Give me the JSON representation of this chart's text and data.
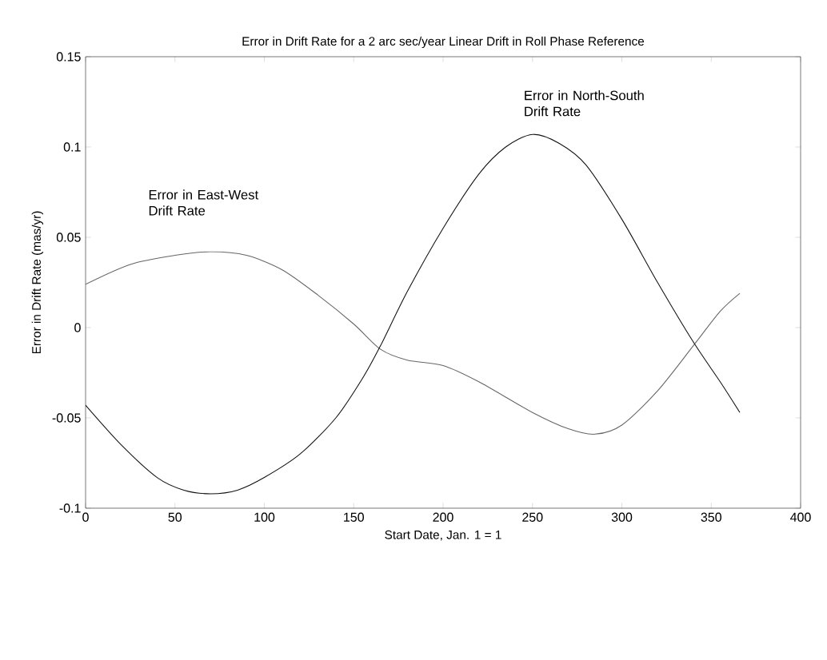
{
  "chart_data": {
    "type": "line",
    "title": "Error in Drift Rate for a 2 arc sec/year Linear Drift in Roll Phase Reference",
    "xlabel": "Start Date, Jan. 1 = 1",
    "ylabel": "Error in Drift Rate (mas/yr)",
    "annotations": [
      "Error in East-West Drift Rate",
      "Error in North-South Drift Rate"
    ],
    "xlim": [
      0,
      400
    ],
    "xticks": [
      0,
      50,
      100,
      150,
      200,
      250,
      300,
      350,
      400
    ],
    "ylim": [
      -0.1,
      0.15
    ],
    "yticks": [
      -0.1,
      -0.05,
      0,
      0.05,
      0.1,
      0.15
    ],
    "grid": false,
    "marker": "none",
    "line_style": "solid",
    "series": [
      {
        "color": "#666666",
        "x": [
          0,
          25,
          50,
          70,
          90,
          110,
          130,
          150,
          165,
          180,
          200,
          220,
          250,
          270,
          285,
          300,
          320,
          340,
          355,
          366
        ],
        "values": [
          0.024,
          0.035,
          0.04,
          0.042,
          0.04,
          0.032,
          0.018,
          0.002,
          -0.012,
          -0.018,
          -0.021,
          -0.03,
          -0.047,
          -0.056,
          -0.059,
          -0.054,
          -0.035,
          -0.01,
          0.009,
          0.019
        ]
      },
      {
        "color": "#111111",
        "x": [
          0,
          20,
          40,
          55,
          70,
          85,
          100,
          120,
          140,
          155,
          165,
          180,
          200,
          220,
          235,
          250,
          265,
          280,
          300,
          320,
          340,
          355,
          366
        ],
        "values": [
          -0.043,
          -0.065,
          -0.083,
          -0.09,
          -0.092,
          -0.09,
          -0.083,
          -0.07,
          -0.05,
          -0.028,
          -0.01,
          0.02,
          0.055,
          0.085,
          0.1,
          0.107,
          0.102,
          0.09,
          0.06,
          0.025,
          -0.008,
          -0.03,
          -0.047
        ]
      }
    ]
  }
}
